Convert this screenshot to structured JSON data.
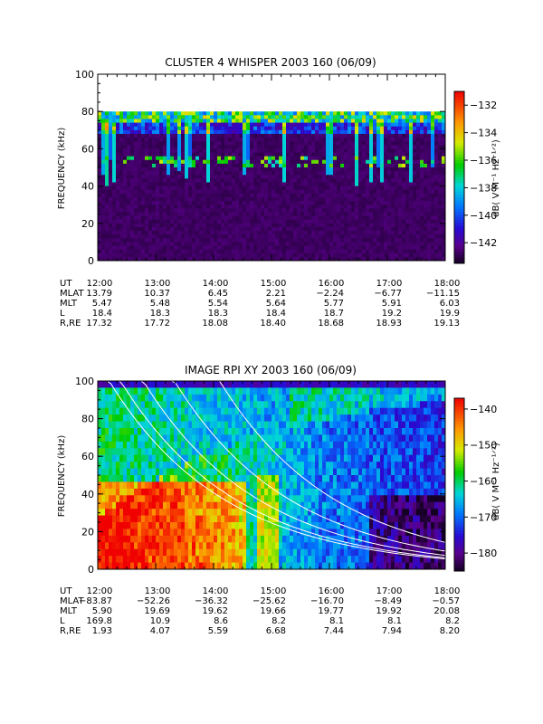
{
  "chart_data": [
    {
      "type": "heatmap",
      "title": "CLUSTER 4 WHISPER 2003 160 (06/09)",
      "ylabel": "FREQUENCY (kHz)",
      "ylim": [
        0,
        100
      ],
      "yticks": [
        "0",
        "20",
        "40",
        "60",
        "80",
        "100"
      ],
      "xlim": [
        "12:00",
        "18:00"
      ],
      "colorbar": {
        "label": "dB( V M⁻¹ Hz⁻¹ᐟ²)",
        "range": [
          -143.5,
          -131
        ],
        "ticks": [
          "-132",
          "-134",
          "-136",
          "-138",
          "-140",
          "-142"
        ],
        "colormap": "rainbow"
      },
      "data_upper_limit_khz": 80,
      "ephemeris": {
        "rows": [
          "UT",
          "MLAT",
          "MLT",
          "L",
          "R,RE"
        ],
        "values": [
          [
            "12:00",
            "13:00",
            "14:00",
            "15:00",
            "16:00",
            "17:00",
            "18:00"
          ],
          [
            "13.79",
            "10.37",
            "6.45",
            "2.21",
            "-2.24",
            "-6.77",
            "-11.15"
          ],
          [
            "5.47",
            "5.48",
            "5.54",
            "5.64",
            "5.77",
            "5.91",
            "6.03"
          ],
          [
            "18.4",
            "18.3",
            "18.3",
            "18.4",
            "18.7",
            "19.2",
            "19.9"
          ],
          [
            "17.32",
            "17.72",
            "18.08",
            "18.40",
            "18.68",
            "18.93",
            "19.13"
          ]
        ]
      }
    },
    {
      "type": "heatmap",
      "title": "IMAGE RPI XY 2003 160 (06/09)",
      "ylabel": "FREQUENCY (kHz)",
      "ylim": [
        0,
        100
      ],
      "yticks": [
        "0",
        "20",
        "40",
        "60",
        "80",
        "100"
      ],
      "xlim": [
        "12:00",
        "18:00"
      ],
      "colorbar": {
        "label": "dB( V M⁻¹ Hz⁻¹ᐟ²)",
        "range": [
          -185,
          -137
        ],
        "ticks": [
          "-140",
          "-150",
          "-160",
          "-170",
          "-180"
        ],
        "colormap": "rainbow"
      },
      "ephemeris": {
        "rows": [
          "UT",
          "MLAT",
          "MLT",
          "L",
          "R,RE"
        ],
        "values": [
          [
            "12:00",
            "13:00",
            "14:00",
            "15:00",
            "16:00",
            "17:00",
            "18:00"
          ],
          [
            "-83.87",
            "-52.26",
            "-36.32",
            "-25.62",
            "-16.70",
            "-8.49",
            "-0.57"
          ],
          [
            "5.90",
            "19.69",
            "19.62",
            "19.66",
            "19.77",
            "19.92",
            "20.08"
          ],
          [
            "169.8",
            "10.9",
            "8.6",
            "8.2",
            "8.1",
            "8.1",
            "8.2"
          ],
          [
            "1.93",
            "4.07",
            "5.59",
            "6.68",
            "7.44",
            "7.94",
            "8.20"
          ]
        ]
      }
    }
  ]
}
